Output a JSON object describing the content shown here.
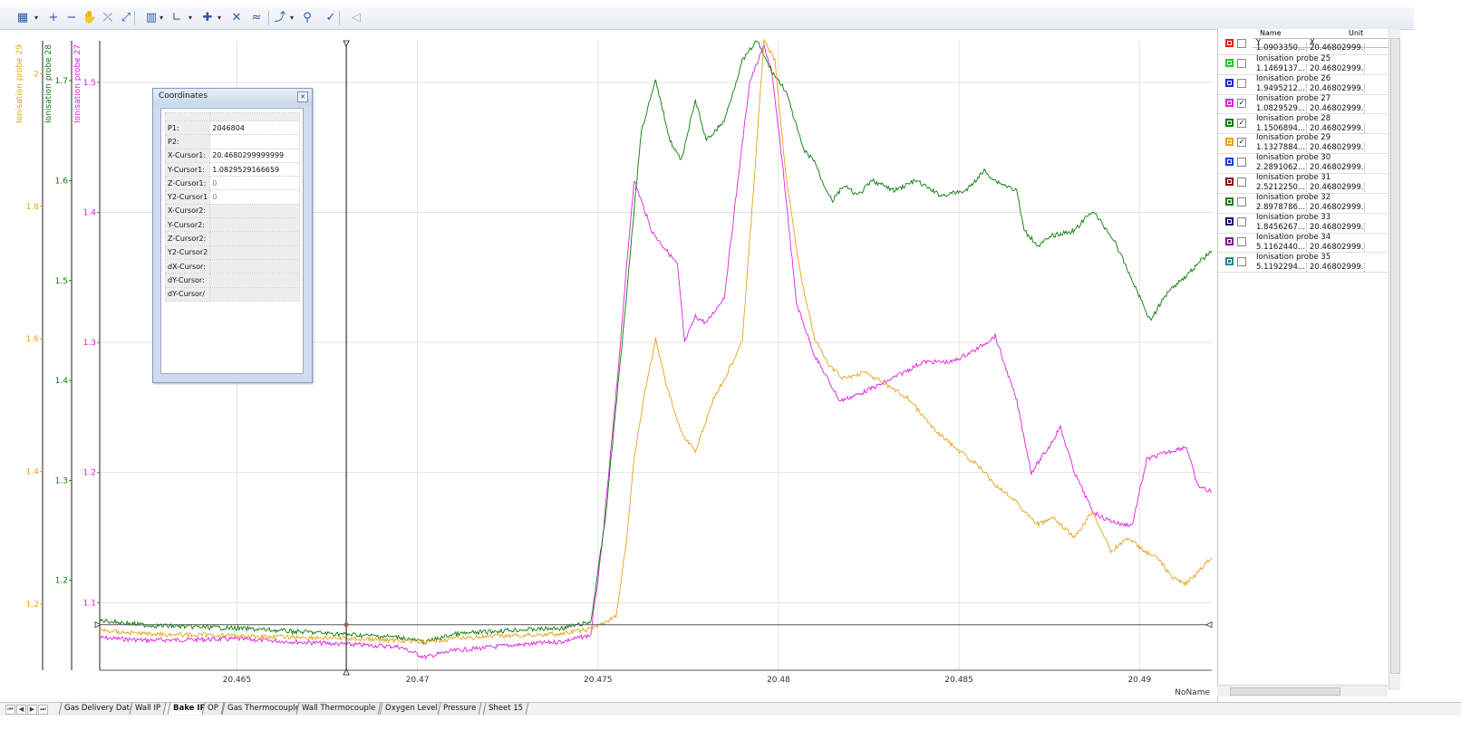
{
  "toolbar": {
    "items": [
      {
        "name": "chart-type-icon",
        "glyph": "▦"
      },
      {
        "name": "zoom-in-icon",
        "glyph": "+"
      },
      {
        "name": "zoom-out-icon",
        "glyph": "−"
      },
      {
        "name": "pan-icon",
        "glyph": "✋"
      },
      {
        "name": "zoom-reset-icon",
        "glyph": "⤫"
      },
      {
        "name": "zoom-fit-icon",
        "glyph": "⤢"
      },
      {
        "name": "axis-settings-icon",
        "glyph": "▥"
      },
      {
        "name": "axes-icon",
        "glyph": "∟"
      },
      {
        "name": "cursor-icon",
        "glyph": "✚"
      },
      {
        "name": "curve-mark-icon",
        "glyph": "✕"
      },
      {
        "name": "curve-list-icon",
        "glyph": "≈"
      },
      {
        "name": "line-style-icon",
        "glyph": "⤴"
      },
      {
        "name": "filter-icon",
        "glyph": "⚲"
      },
      {
        "name": "check-curve-icon",
        "glyph": "✓"
      },
      {
        "name": "mute-icon",
        "glyph": "◁"
      }
    ]
  },
  "coordinates": {
    "title": "Coordinates",
    "rows": [
      {
        "key": "P1:",
        "value": "2046804"
      },
      {
        "key": "P2:",
        "value": ""
      },
      {
        "key": "X-Cursor1:",
        "value": "20.4680299999999"
      },
      {
        "key": "Y-Cursor1:",
        "value": "1.0829529166659"
      },
      {
        "key": "Z-Cursor1:",
        "value": "0"
      },
      {
        "key": "Y2-Cursor1",
        "value": "0"
      },
      {
        "key": "X-Cursor2:",
        "value": ""
      },
      {
        "key": "Y-Cursor2:",
        "value": ""
      },
      {
        "key": "Z-Cursor2:",
        "value": ""
      },
      {
        "key": "Y2-Cursor2",
        "value": ""
      },
      {
        "key": "dX-Cursor:",
        "value": ""
      },
      {
        "key": "dY-Cursor:",
        "value": ""
      },
      {
        "key": "dY-Cursor/",
        "value": ""
      }
    ]
  },
  "legend": {
    "header": {
      "name": "Name",
      "unit": "Unit",
      "y": "Y",
      "x": "X"
    },
    "items": [
      {
        "name": "",
        "y": "1.0903350...",
        "x": "20.46802999...",
        "color": "#e02020",
        "checked": false
      },
      {
        "name": "Ionisation probe 25",
        "y": "1.1469137...",
        "x": "20.46802999...",
        "color": "#22cc22",
        "checked": false
      },
      {
        "name": "Ionisation probe 26",
        "y": "1.9495212...",
        "x": "20.46802999...",
        "color": "#1a2acc",
        "checked": false
      },
      {
        "name": "Ionisation probe 27",
        "y": "1.0829529...",
        "x": "20.46802999...",
        "color": "#e020e0",
        "checked": true
      },
      {
        "name": "Ionisation probe 28",
        "y": "1.1506894...",
        "x": "20.46802999...",
        "color": "#0a7a0a",
        "checked": true
      },
      {
        "name": "Ionisation probe 29",
        "y": "1.1327884...",
        "x": "20.46802999...",
        "color": "#e5a21a",
        "checked": true
      },
      {
        "name": "Ionisation probe 30",
        "y": "2.2891062...",
        "x": "20.46802999...",
        "color": "#1a3fd0",
        "checked": false
      },
      {
        "name": "Ionisation probe 31",
        "y": "2.5212250...",
        "x": "20.46802999...",
        "color": "#8a1010",
        "checked": false
      },
      {
        "name": "Ionisation probe 32",
        "y": "2.8978786...",
        "x": "20.46802999...",
        "color": "#2a7a2a",
        "checked": false
      },
      {
        "name": "Ionisation probe 33",
        "y": "1.8456267...",
        "x": "20.46802999...",
        "color": "#101080",
        "checked": false
      },
      {
        "name": "Ionisation probe 34",
        "y": "5.1162440...",
        "x": "20.46802999...",
        "color": "#7a1a8a",
        "checked": false
      },
      {
        "name": "Ionisation probe 35",
        "y": "5.1192294...",
        "x": "20.46802999...",
        "color": "#1a8a8a",
        "checked": false
      }
    ]
  },
  "sheet_tabs": {
    "items": [
      "Gas Delivery Data",
      "Wall IP",
      "Bake IP",
      "OP",
      "Gas Thermocouple",
      "Wall Thermocouple",
      "Oxygen Level",
      "Pressure",
      "Sheet 15"
    ],
    "active": "Bake IP"
  },
  "chart_data": {
    "type": "line",
    "x_unit_label": "NoName",
    "xlim": [
      20.4612,
      20.492
    ],
    "x_ticks": [
      "20.465",
      "20.47",
      "20.475",
      "20.48",
      "20.485",
      "20.49"
    ],
    "cursor_x": 20.46803,
    "cursor_y_probe27": 1.083,
    "axes": [
      {
        "label": "Ionisation probe 29",
        "color": "#e5a21a",
        "ylim": [
          1.1,
          2.05
        ],
        "ticks": [
          "1.2",
          "1.4",
          "1.6",
          "1.8",
          "2"
        ]
      },
      {
        "label": "Ionisation probe 28",
        "color": "#0a7a0a",
        "ylim": [
          1.11,
          1.74
        ],
        "ticks": [
          "1.2",
          "1.3",
          "1.4",
          "1.5",
          "1.6",
          "1.7"
        ]
      },
      {
        "label": "Ionisation probe 27",
        "color": "#e020e0",
        "ylim": [
          1.048,
          1.532
        ],
        "ticks": [
          "1.1",
          "1.2",
          "1.3",
          "1.4",
          "1.5"
        ]
      }
    ],
    "series": [
      {
        "name": "Ionisation probe 27",
        "color": "#e020e0",
        "axis": 2,
        "x": [
          20.4612,
          20.4625,
          20.465,
          20.4665,
          20.468,
          20.4695,
          20.4702,
          20.471,
          20.4725,
          20.474,
          20.4748,
          20.4751,
          20.4755,
          20.4758,
          20.476,
          20.4765,
          20.4772,
          20.4774,
          20.4777,
          20.478,
          20.4785,
          20.4789,
          20.4792,
          20.4796,
          20.4798,
          20.4801,
          20.4805,
          20.481,
          20.4817,
          20.4822,
          20.483,
          20.484,
          20.4848,
          20.4855,
          20.486,
          20.4863,
          20.4866,
          20.487,
          20.4875,
          20.4878,
          20.4882,
          20.4887,
          20.489,
          20.4895,
          20.4898,
          20.4902,
          20.4907,
          20.4913,
          20.4916,
          20.492
        ],
        "y": [
          1.073,
          1.071,
          1.072,
          1.07,
          1.068,
          1.066,
          1.058,
          1.063,
          1.067,
          1.07,
          1.075,
          1.14,
          1.26,
          1.36,
          1.425,
          1.385,
          1.36,
          1.3,
          1.32,
          1.315,
          1.335,
          1.43,
          1.5,
          1.528,
          1.51,
          1.44,
          1.33,
          1.29,
          1.255,
          1.26,
          1.27,
          1.285,
          1.285,
          1.295,
          1.305,
          1.28,
          1.255,
          1.2,
          1.22,
          1.235,
          1.2,
          1.17,
          1.165,
          1.16,
          1.16,
          1.21,
          1.215,
          1.22,
          1.19,
          1.185
        ]
      },
      {
        "name": "Ionisation probe 28",
        "color": "#0a7a0a",
        "axis": 1,
        "x": [
          20.4612,
          20.4625,
          20.465,
          20.4665,
          20.468,
          20.4695,
          20.4702,
          20.471,
          20.4725,
          20.474,
          20.4748,
          20.4752,
          20.4757,
          20.4762,
          20.4766,
          20.477,
          20.4773,
          20.4777,
          20.478,
          20.4785,
          20.479,
          20.4794,
          20.4798,
          20.4802,
          20.4807,
          20.481,
          20.4812,
          20.4815,
          20.4818,
          20.4822,
          20.4826,
          20.4832,
          20.4838,
          20.4845,
          20.4852,
          20.4857,
          20.486,
          20.4866,
          20.4868,
          20.4872,
          20.4876,
          20.4882,
          20.4887,
          20.4893,
          20.4898,
          20.4903,
          20.4908,
          20.4913,
          20.4917,
          20.492
        ],
        "y": [
          1.16,
          1.155,
          1.152,
          1.149,
          1.146,
          1.143,
          1.138,
          1.146,
          1.15,
          1.152,
          1.158,
          1.26,
          1.45,
          1.65,
          1.7,
          1.64,
          1.62,
          1.68,
          1.64,
          1.66,
          1.72,
          1.74,
          1.71,
          1.69,
          1.63,
          1.62,
          1.6,
          1.58,
          1.595,
          1.585,
          1.6,
          1.59,
          1.6,
          1.585,
          1.59,
          1.61,
          1.6,
          1.59,
          1.55,
          1.535,
          1.545,
          1.55,
          1.57,
          1.54,
          1.5,
          1.46,
          1.49,
          1.505,
          1.52,
          1.53
        ]
      },
      {
        "name": "Ionisation probe 29",
        "color": "#e5a21a",
        "axis": 0,
        "x": [
          20.4612,
          20.4625,
          20.465,
          20.4665,
          20.468,
          20.4695,
          20.4702,
          20.471,
          20.4725,
          20.474,
          20.4748,
          20.4755,
          20.4758,
          20.476,
          20.4763,
          20.4766,
          20.4769,
          20.4773,
          20.4777,
          20.4782,
          20.4786,
          20.479,
          20.4793,
          20.4796,
          20.4799,
          20.4802,
          20.4806,
          20.481,
          20.4814,
          20.4818,
          20.4824,
          20.483,
          20.4836,
          20.4842,
          20.4848,
          20.4855,
          20.486,
          20.4865,
          20.4868,
          20.4872,
          20.4876,
          20.4882,
          20.4887,
          20.4892,
          20.4897,
          20.4901,
          20.4905,
          20.4909,
          20.4913,
          20.492
        ],
        "y": [
          1.16,
          1.155,
          1.152,
          1.15,
          1.148,
          1.145,
          1.142,
          1.148,
          1.152,
          1.155,
          1.162,
          1.18,
          1.3,
          1.42,
          1.52,
          1.6,
          1.53,
          1.46,
          1.43,
          1.51,
          1.55,
          1.6,
          1.82,
          2.05,
          2.02,
          1.85,
          1.7,
          1.6,
          1.56,
          1.54,
          1.55,
          1.53,
          1.51,
          1.47,
          1.44,
          1.41,
          1.38,
          1.36,
          1.34,
          1.32,
          1.33,
          1.3,
          1.34,
          1.28,
          1.3,
          1.28,
          1.27,
          1.24,
          1.23,
          1.27
        ]
      }
    ]
  }
}
